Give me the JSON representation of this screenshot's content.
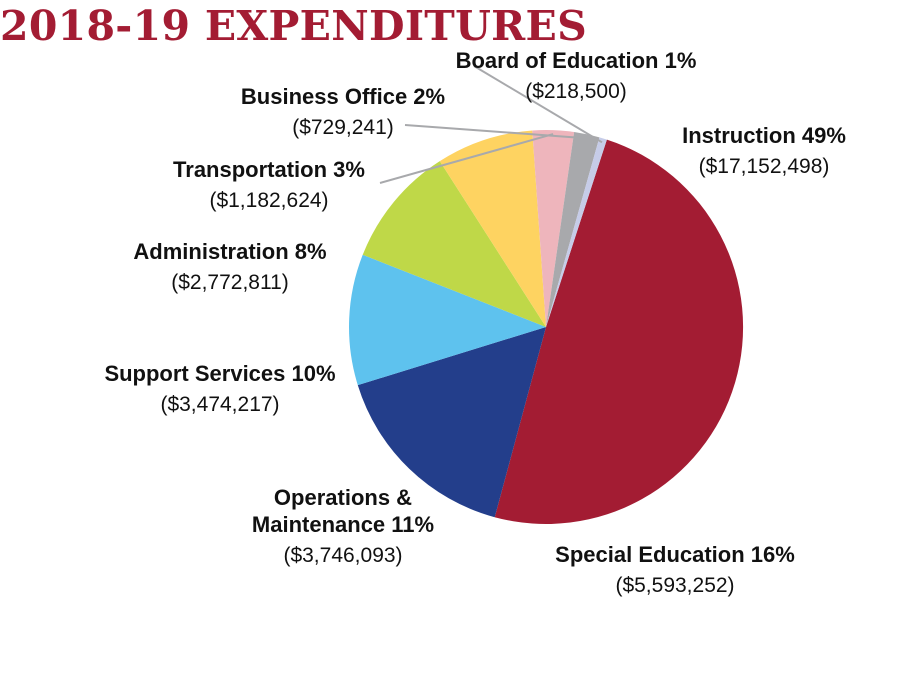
{
  "chart_data": {
    "type": "pie",
    "title": "2018-19 EXPENDITURES",
    "slices": [
      {
        "name": "Instruction",
        "percent_label": "49%",
        "value": 17152498,
        "value_label": "($17,152,498)",
        "color": "#a31c33"
      },
      {
        "name": "Special Education",
        "percent_label": "16%",
        "value": 5593252,
        "value_label": "($5,593,252)",
        "color": "#233e8b"
      },
      {
        "name": "Operations & Maintenance",
        "name_lines": [
          "Operations &",
          "Maintenance 11%"
        ],
        "percent_label": "11%",
        "value": 3746093,
        "value_label": "($3,746,093)",
        "color": "#5ec2ee"
      },
      {
        "name": "Support Services",
        "percent_label": "10%",
        "value": 3474217,
        "value_label": "($3,474,217)",
        "color": "#bfd848"
      },
      {
        "name": "Administration",
        "percent_label": "8%",
        "value": 2772811,
        "value_label": "($2,772,811)",
        "color": "#fed361"
      },
      {
        "name": "Transportation",
        "percent_label": "3%",
        "value": 1182624,
        "value_label": "($1,182,624)",
        "color": "#eeb5bc"
      },
      {
        "name": "Business Office",
        "percent_label": "2%",
        "value": 729241,
        "value_label": "($729,241)",
        "color": "#a8a9ac"
      },
      {
        "name": "Board of Education",
        "percent_label": "1%",
        "value": 218500,
        "value_label": "($218,500)",
        "color": "#c6cce8"
      }
    ]
  }
}
